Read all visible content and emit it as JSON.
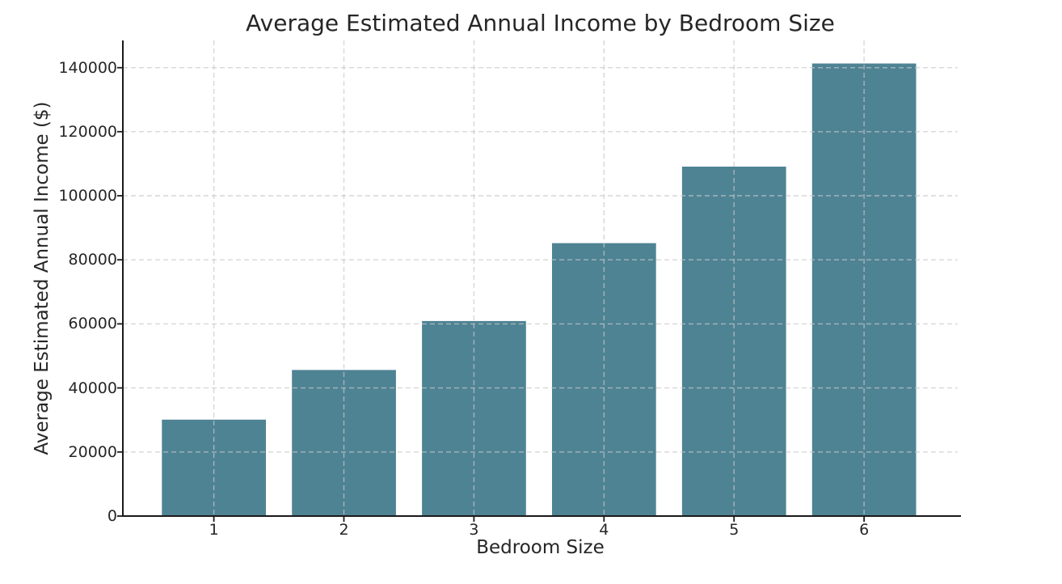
{
  "figure": {
    "background": "#ffffff"
  },
  "chart_data": {
    "type": "bar",
    "title": "Average Estimated Annual Income by Bedroom Size",
    "xlabel": "Bedroom Size",
    "ylabel": "Average Estimated Annual Income ($)",
    "categories": [
      "1",
      "2",
      "3",
      "4",
      "5",
      "6"
    ],
    "x_positions": [
      1,
      2,
      3,
      4,
      5,
      6
    ],
    "values": [
      30100,
      45600,
      60900,
      85200,
      109100,
      141300
    ],
    "bar_width_units": 0.8,
    "xlim": [
      0.3,
      6.72
    ],
    "ylim": [
      0,
      148500
    ],
    "yticks": [
      0,
      20000,
      40000,
      60000,
      80000,
      100000,
      120000,
      140000
    ],
    "ytick_labels": [
      "0",
      "20000",
      "40000",
      "60000",
      "80000",
      "100000",
      "120000",
      "140000"
    ],
    "bar_color": "#4E8394",
    "grid": true,
    "grid_style": "dashed",
    "grid_color": "rgba(200,200,200,0.72)",
    "grid_over_bars": true,
    "spine_color": "#1a1a1a",
    "spines_visible": [
      "left",
      "bottom"
    ],
    "text_color": "#262626",
    "legend": "none"
  }
}
